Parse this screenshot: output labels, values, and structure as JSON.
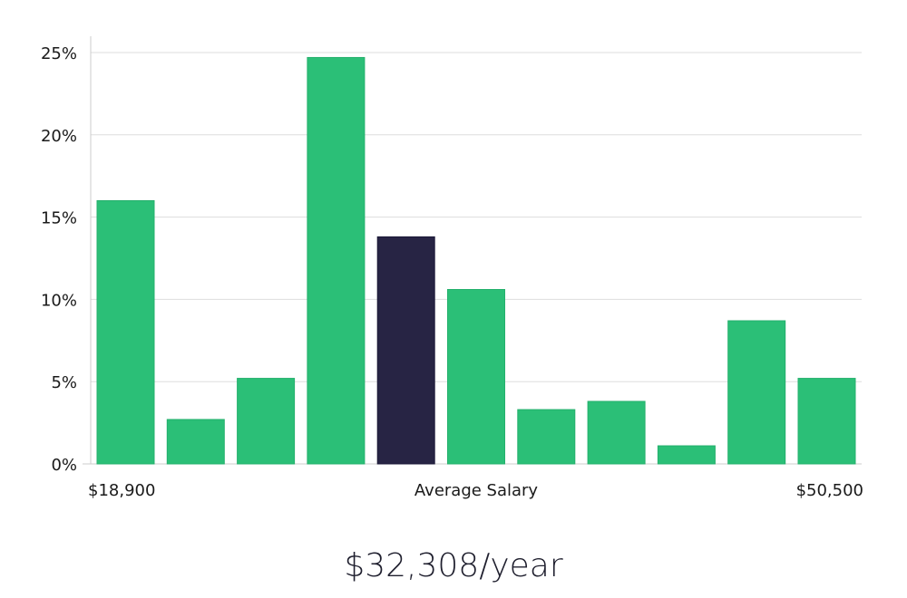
{
  "chart_data": {
    "type": "bar",
    "title": "",
    "xlabel": "Average Salary",
    "ylabel": "",
    "x_range_labels": {
      "min": "$18,900",
      "max": "$50,500"
    },
    "categories": [
      "1",
      "2",
      "3",
      "4",
      "5",
      "6",
      "7",
      "8",
      "9",
      "10",
      "11"
    ],
    "values": [
      16.0,
      2.7,
      5.2,
      24.7,
      13.8,
      10.6,
      3.3,
      3.8,
      1.1,
      8.7,
      5.2
    ],
    "highlight_index": 4,
    "ylim": [
      0,
      26
    ],
    "yticks": [
      0,
      5,
      10,
      15,
      20,
      25
    ],
    "ytick_labels": [
      "0%",
      "5%",
      "10%",
      "15%",
      "20%",
      "25%"
    ],
    "grid": true,
    "legend": "none",
    "colors": {
      "bar": "#2bbf77",
      "highlight": "#272444",
      "grid": "#dddddd",
      "axis": "#cccccc"
    }
  },
  "salary": {
    "value_text": "$32,308/year"
  }
}
